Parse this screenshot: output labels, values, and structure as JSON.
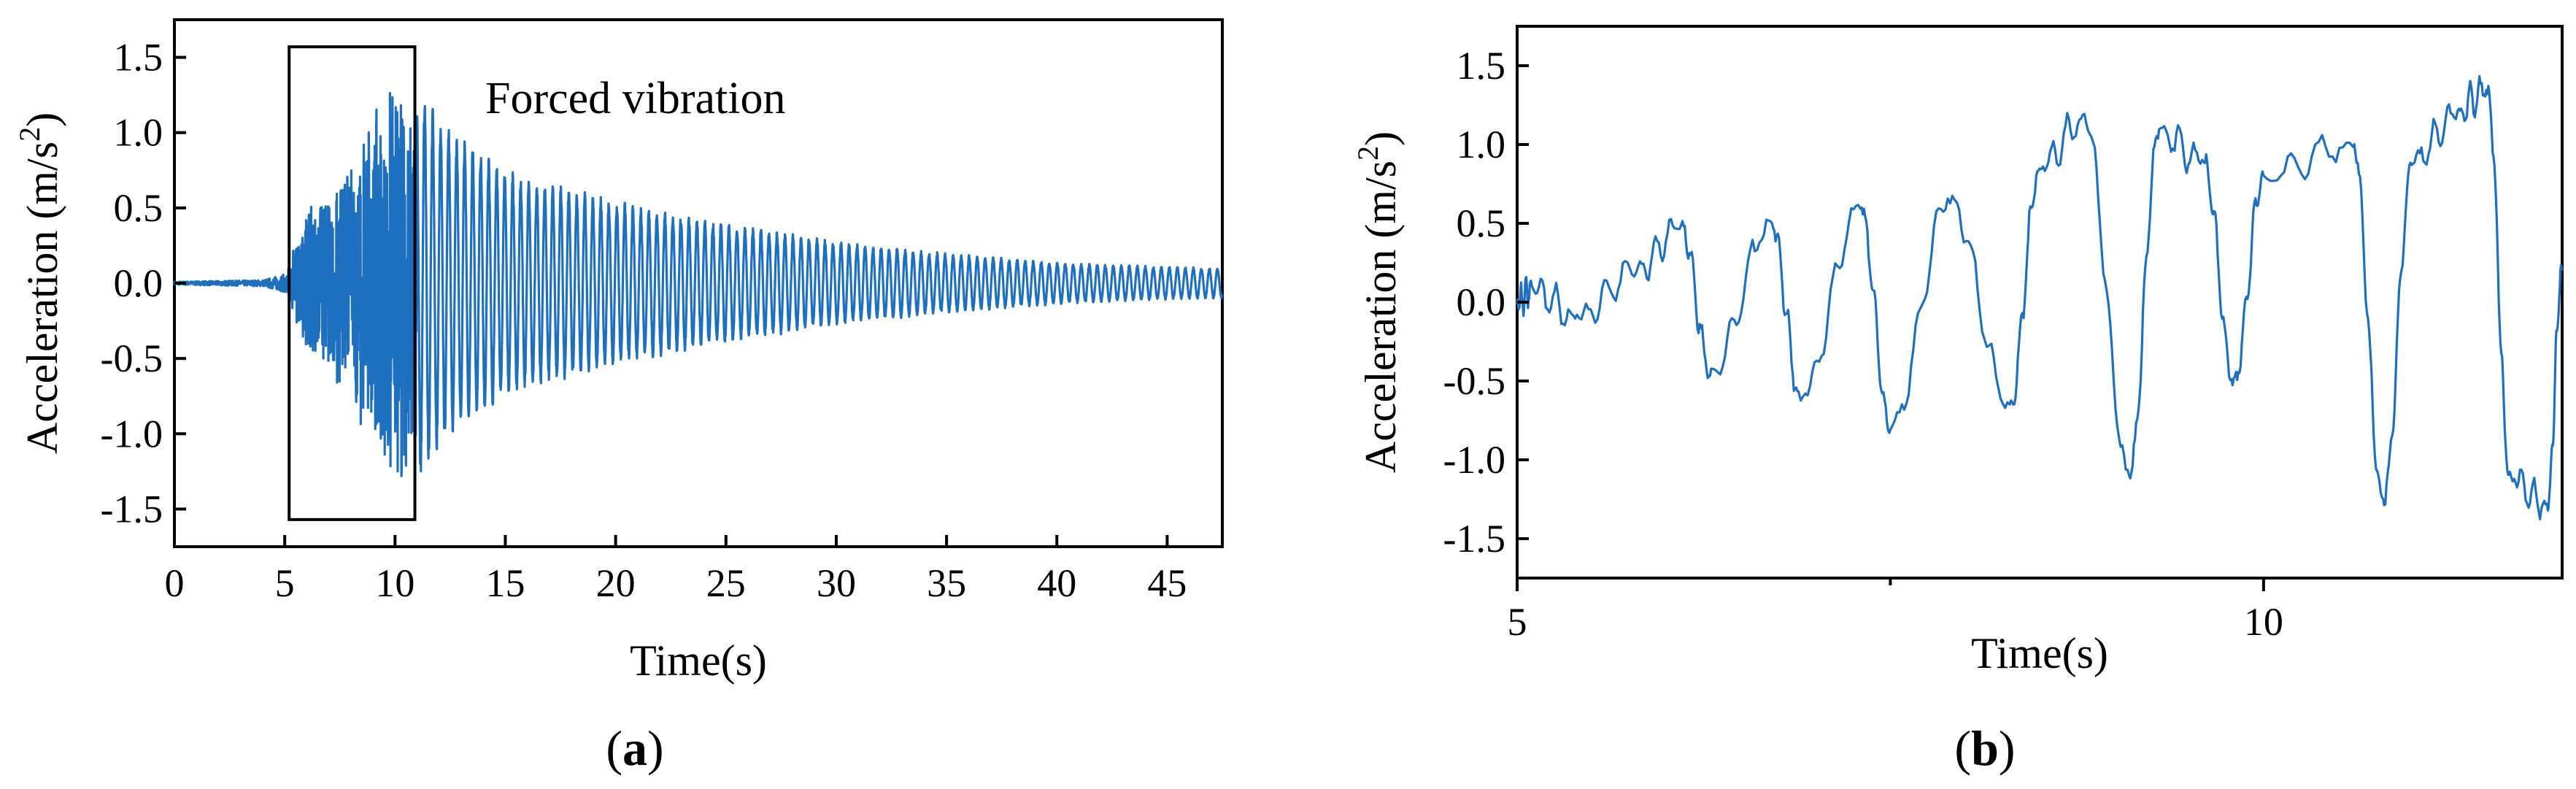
{
  "colors": {
    "trace": "#1f6fbf",
    "axes": "#000000"
  },
  "panels": [
    {
      "caption_letter": "a",
      "caption_open": "(",
      "caption_close": ")",
      "annotation": "Forced vibration"
    },
    {
      "caption_letter": "b",
      "caption_open": "(",
      "caption_close": ")"
    }
  ],
  "chart_data": [
    {
      "type": "line",
      "xlabel": "Time(s)",
      "ylabel": "Acceleration (m/s²)",
      "ylabel_parts": {
        "base": "Acceleration (m/s",
        "sup": "2",
        "close": ")"
      },
      "xlim": [
        0,
        47.5
      ],
      "ylim": [
        -1.75,
        1.75
      ],
      "xticks": [
        0,
        5,
        10,
        15,
        20,
        25,
        30,
        35,
        40,
        45
      ],
      "xtick_labels": [
        "0",
        "5",
        "10",
        "15",
        "20",
        "25",
        "30",
        "35",
        "40",
        "45"
      ],
      "yticks": [
        -1.5,
        -1.0,
        -0.5,
        0.0,
        0.5,
        1.0,
        1.5
      ],
      "ytick_labels": [
        "-1.5",
        "-1.0",
        "-0.5",
        "0.0",
        "0.5",
        "1.0",
        "1.5"
      ],
      "highlight_box": {
        "x": [
          5.2,
          10.9
        ],
        "y": [
          -1.57,
          1.57
        ]
      },
      "signal": {
        "description_points_t": [
          0,
          4.0,
          5.0,
          6.0,
          7.0,
          8.0,
          9.0,
          10.0,
          11.0,
          12.0,
          15.0,
          20.0,
          25.0,
          30.0,
          35.0,
          40.0,
          45.0,
          47.5
        ],
        "envelope": [
          0.01,
          0.02,
          0.06,
          0.5,
          0.65,
          0.8,
          1.15,
          1.3,
          1.35,
          1.1,
          0.75,
          0.55,
          0.4,
          0.28,
          0.2,
          0.14,
          0.11,
          0.1
        ],
        "dominant_frequency_hz": 1.9
      },
      "grid": false
    },
    {
      "type": "line",
      "xlabel": "Time(s)",
      "ylabel": "Acceleration (m/s²)",
      "ylabel_parts": {
        "base": "Acceleration (m/s",
        "sup": "2",
        "close": ")"
      },
      "xlim": [
        5,
        12.0
      ],
      "ylim": [
        -1.75,
        1.75
      ],
      "xticks_major": [
        5,
        10
      ],
      "xtick_labels": [
        "5",
        "10"
      ],
      "xticks_minor": [
        7.5
      ],
      "yticks": [
        -1.5,
        -1.0,
        -0.5,
        0.0,
        0.5,
        1.0,
        1.5
      ],
      "ytick_labels": [
        "-1.5",
        "-1.0",
        "-0.5",
        "0.0",
        "0.5",
        "1.0",
        "1.5"
      ],
      "peaks": [
        {
          "t": 5.1,
          "v": 0.08
        },
        {
          "t": 5.4,
          "v": -0.1
        },
        {
          "t": 5.8,
          "v": 0.2
        },
        {
          "t": 6.1,
          "v": 0.48
        },
        {
          "t": 6.3,
          "v": -0.45
        },
        {
          "t": 6.7,
          "v": 0.5
        },
        {
          "t": 6.9,
          "v": -0.6
        },
        {
          "t": 7.3,
          "v": 0.6
        },
        {
          "t": 7.5,
          "v": -0.8
        },
        {
          "t": 7.9,
          "v": 0.65
        },
        {
          "t": 8.3,
          "v": -0.65
        },
        {
          "t": 8.5,
          "v": 0.85
        },
        {
          "t": 8.8,
          "v": 1.17
        },
        {
          "t": 9.1,
          "v": -1.1
        },
        {
          "t": 9.3,
          "v": 1.08
        },
        {
          "t": 9.6,
          "v": 0.9
        },
        {
          "t": 9.8,
          "v": -0.5
        },
        {
          "t": 10.0,
          "v": 0.8
        },
        {
          "t": 10.6,
          "v": 1.0
        },
        {
          "t": 10.8,
          "v": -1.27
        },
        {
          "t": 11.0,
          "v": 0.9
        },
        {
          "t": 11.3,
          "v": 1.2
        },
        {
          "t": 11.5,
          "v": 1.35
        },
        {
          "t": 11.65,
          "v": -1.1
        },
        {
          "t": 11.9,
          "v": -1.3
        },
        {
          "t": 12.0,
          "v": 0.2
        }
      ],
      "grid": false
    }
  ]
}
